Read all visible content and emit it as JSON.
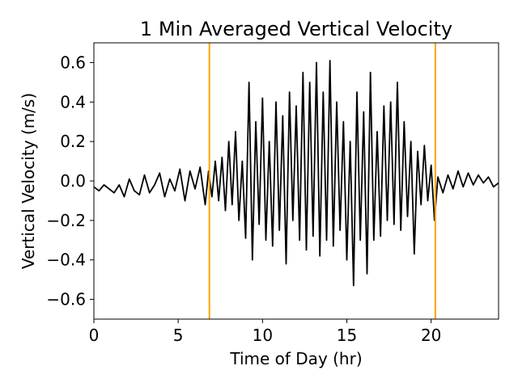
{
  "chart_data": {
    "type": "line",
    "title": "1 Min Averaged Vertical Velocity",
    "xlabel": "Time of Day (hr)",
    "ylabel": "Vertical Velocity (m/s)",
    "xlim": [
      0,
      24
    ],
    "ylim": [
      -0.7,
      0.7
    ],
    "xticks": [
      0,
      5,
      10,
      15,
      20
    ],
    "xtick_labels": [
      "0",
      "5",
      "10",
      "15",
      "20"
    ],
    "yticks": [
      -0.6,
      -0.4,
      -0.2,
      0.0,
      0.2,
      0.4,
      0.6
    ],
    "ytick_labels": [
      "−0.6",
      "−0.4",
      "−0.2",
      "0.0",
      "0.2",
      "0.4",
      "0.6"
    ],
    "grid": false,
    "legend": "none",
    "series": [
      {
        "color": "#000000",
        "x": [
          0.0,
          0.3,
          0.6,
          0.9,
          1.2,
          1.5,
          1.8,
          2.1,
          2.4,
          2.7,
          3.0,
          3.3,
          3.6,
          3.9,
          4.2,
          4.5,
          4.8,
          5.1,
          5.4,
          5.7,
          6.0,
          6.3,
          6.6,
          6.8,
          7.0,
          7.2,
          7.4,
          7.6,
          7.8,
          8.0,
          8.2,
          8.4,
          8.6,
          8.8,
          9.0,
          9.2,
          9.4,
          9.6,
          9.8,
          10.0,
          10.2,
          10.4,
          10.6,
          10.8,
          11.0,
          11.2,
          11.4,
          11.6,
          11.8,
          12.0,
          12.2,
          12.4,
          12.6,
          12.8,
          13.0,
          13.2,
          13.4,
          13.6,
          13.8,
          14.0,
          14.2,
          14.4,
          14.6,
          14.8,
          15.0,
          15.2,
          15.4,
          15.6,
          15.8,
          16.0,
          16.2,
          16.4,
          16.6,
          16.8,
          17.0,
          17.2,
          17.4,
          17.6,
          17.8,
          18.0,
          18.2,
          18.4,
          18.6,
          18.8,
          19.0,
          19.2,
          19.4,
          19.6,
          19.8,
          20.0,
          20.2,
          20.4,
          20.7,
          21.0,
          21.3,
          21.6,
          21.9,
          22.2,
          22.5,
          22.8,
          23.1,
          23.4,
          23.7,
          24.0
        ],
        "y": [
          -0.03,
          -0.05,
          -0.02,
          -0.04,
          -0.06,
          -0.02,
          -0.08,
          0.01,
          -0.05,
          -0.07,
          0.03,
          -0.06,
          -0.02,
          0.04,
          -0.08,
          0.01,
          -0.05,
          0.06,
          -0.1,
          0.05,
          -0.04,
          0.07,
          -0.12,
          0.05,
          -0.08,
          0.1,
          -0.1,
          0.12,
          -0.15,
          0.2,
          -0.12,
          0.25,
          -0.2,
          0.1,
          -0.29,
          0.5,
          -0.4,
          0.3,
          -0.22,
          0.42,
          -0.3,
          0.2,
          -0.33,
          0.4,
          -0.25,
          0.33,
          -0.42,
          0.45,
          -0.2,
          0.38,
          -0.3,
          0.55,
          -0.35,
          0.5,
          -0.28,
          0.6,
          -0.38,
          0.45,
          -0.3,
          0.61,
          -0.33,
          0.4,
          -0.25,
          0.3,
          -0.4,
          0.2,
          -0.53,
          0.45,
          -0.3,
          0.35,
          -0.47,
          0.55,
          -0.3,
          0.25,
          -0.28,
          0.38,
          -0.2,
          0.4,
          -0.22,
          0.5,
          -0.25,
          0.3,
          -0.18,
          0.2,
          -0.37,
          0.15,
          -0.12,
          0.18,
          -0.1,
          0.08,
          -0.2,
          0.02,
          -0.06,
          0.03,
          -0.04,
          0.05,
          -0.03,
          0.04,
          -0.02,
          0.03,
          -0.01,
          0.02,
          -0.03,
          -0.01
        ]
      }
    ],
    "vlines": [
      {
        "x": 6.85,
        "color": "#FFA500"
      },
      {
        "x": 20.25,
        "color": "#FFA500"
      }
    ]
  }
}
